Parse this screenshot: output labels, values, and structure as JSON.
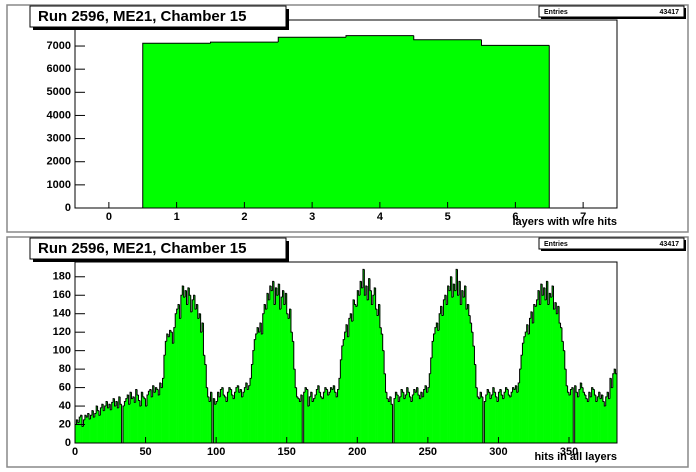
{
  "chart_data": [
    {
      "type": "histogram",
      "title": "Run 2596, ME21, Chamber 15",
      "x_label": "layers with wire hits",
      "stats_label": "Entries",
      "stats_value": 43417,
      "color": "#00ff00",
      "bins": [
        -0.5,
        0.5,
        1.5,
        2.5,
        3.5,
        4.5,
        5.5,
        6.5,
        7.5
      ],
      "values": [
        0,
        7120,
        7170,
        7380,
        7450,
        7270,
        7030,
        0
      ],
      "xlim": [
        -0.5,
        7.5
      ],
      "xticks": [
        0,
        1,
        2,
        3,
        4,
        5,
        6,
        7
      ],
      "ylim": [
        0,
        8125
      ],
      "yticks": [
        0,
        1000,
        2000,
        3000,
        4000,
        5000,
        6000,
        7000
      ]
    },
    {
      "type": "histogram",
      "title": "Run 2596, ME21, Chamber 15",
      "x_label": "hits in all layers",
      "stats_label": "Entries",
      "stats_value": 43417,
      "color": "#00ff00",
      "bins": [
        0,
        1,
        2,
        3,
        4,
        5,
        6,
        7,
        8,
        9,
        10,
        11,
        12,
        13,
        14,
        15,
        16,
        17,
        18,
        19,
        20,
        21,
        22,
        23,
        24,
        25,
        26,
        27,
        28,
        29,
        30,
        31,
        32,
        33,
        34,
        35,
        36,
        37,
        38,
        39,
        40,
        41,
        42,
        43,
        44,
        45,
        46,
        47,
        48,
        49,
        50,
        51,
        52,
        53,
        54,
        55,
        56,
        57,
        58,
        59,
        60,
        61,
        62,
        63,
        64,
        65,
        66,
        67,
        68,
        69,
        70,
        71,
        72,
        73,
        74,
        75,
        76,
        77,
        78,
        79,
        80,
        81,
        82,
        83,
        84,
        85,
        86,
        87,
        88,
        89,
        90,
        91,
        92,
        93,
        94,
        95,
        96,
        97,
        98,
        99,
        100,
        101,
        102,
        103,
        104,
        105,
        106,
        107,
        108,
        109,
        110,
        111,
        112,
        113,
        114,
        115,
        116,
        117,
        118,
        119,
        120,
        121,
        122,
        123,
        124,
        125,
        126,
        127,
        128,
        129,
        130,
        131,
        132,
        133,
        134,
        135,
        136,
        137,
        138,
        139,
        140,
        141,
        142,
        143,
        144,
        145,
        146,
        147,
        148,
        149,
        150,
        151,
        152,
        153,
        154,
        155,
        156,
        157,
        158,
        159,
        160,
        161,
        162,
        163,
        164,
        165,
        166,
        167,
        168,
        169,
        170,
        171,
        172,
        173,
        174,
        175,
        176,
        177,
        178,
        179,
        180,
        181,
        182,
        183,
        184,
        185,
        186,
        187,
        188,
        189,
        190,
        191,
        192,
        193,
        194,
        195,
        196,
        197,
        198,
        199,
        200,
        201,
        202,
        203,
        204,
        205,
        206,
        207,
        208,
        209,
        210,
        211,
        212,
        213,
        214,
        215,
        216,
        217,
        218,
        219,
        220,
        221,
        222,
        223,
        224,
        225,
        226,
        227,
        228,
        229,
        230,
        231,
        232,
        233,
        234,
        235,
        236,
        237,
        238,
        239,
        240,
        241,
        242,
        243,
        244,
        245,
        246,
        247,
        248,
        249,
        250,
        251,
        252,
        253,
        254,
        255,
        256,
        257,
        258,
        259,
        260,
        261,
        262,
        263,
        264,
        265,
        266,
        267,
        268,
        269,
        270,
        271,
        272,
        273,
        274,
        275,
        276,
        277,
        278,
        279,
        280,
        281,
        282,
        283,
        284,
        285,
        286,
        287,
        288,
        289,
        290,
        291,
        292,
        293,
        294,
        295,
        296,
        297,
        298,
        299,
        300,
        301,
        302,
        303,
        304,
        305,
        306,
        307,
        308,
        309,
        310,
        311,
        312,
        313,
        314,
        315,
        316,
        317,
        318,
        319,
        320,
        321,
        322,
        323,
        324,
        325,
        326,
        327,
        328,
        329,
        330,
        331,
        332,
        333,
        334,
        335,
        336,
        337,
        338,
        339,
        340,
        341,
        342,
        343,
        344,
        345,
        346,
        347,
        348,
        349,
        350,
        351,
        352,
        353,
        354,
        355,
        356,
        357,
        358,
        359,
        360,
        361,
        362,
        363,
        364,
        365,
        366,
        367,
        368,
        369,
        370,
        371,
        372,
        373,
        374,
        375,
        376,
        377,
        378,
        379,
        380,
        381,
        382,
        383,
        384
      ],
      "values": [
        20,
        25,
        22,
        28,
        30,
        18,
        25,
        30,
        28,
        32,
        26,
        30,
        35,
        28,
        32,
        40,
        35,
        30,
        38,
        42,
        35,
        40,
        45,
        38,
        42,
        36,
        44,
        48,
        40,
        45,
        38,
        50,
        42,
        0,
        40,
        45,
        48,
        52,
        42,
        55,
        48,
        50,
        44,
        58,
        52,
        46,
        40,
        55,
        50,
        48,
        40,
        52,
        56,
        58,
        50,
        62,
        55,
        60,
        58,
        52,
        65,
        60,
        70,
        95,
        110,
        118,
        115,
        122,
        120,
        108,
        125,
        140,
        145,
        150,
        135,
        160,
        170,
        158,
        165,
        150,
        168,
        160,
        142,
        155,
        160,
        145,
        150,
        135,
        140,
        120,
        130,
        95,
        85,
        60,
        50,
        45,
        55,
        0,
        48,
        42,
        45,
        55,
        50,
        58,
        60,
        52,
        50,
        45,
        55,
        60,
        58,
        52,
        48,
        55,
        60,
        62,
        55,
        58,
        50,
        55,
        60,
        65,
        58,
        62,
        70,
        85,
        100,
        112,
        118,
        125,
        120,
        130,
        118,
        140,
        150,
        145,
        162,
        155,
        170,
        165,
        175,
        150,
        168,
        160,
        172,
        145,
        158,
        165,
        150,
        162,
        140,
        135,
        145,
        120,
        110,
        80,
        60,
        50,
        48,
        45,
        52,
        0,
        55,
        60,
        58,
        40,
        50,
        55,
        45,
        48,
        52,
        58,
        62,
        55,
        50,
        48,
        55,
        60,
        58,
        52,
        55,
        60,
        58,
        62,
        55,
        50,
        58,
        70,
        90,
        105,
        112,
        120,
        128,
        115,
        135,
        140,
        132,
        155,
        150,
        148,
        165,
        160,
        175,
        168,
        188,
        160,
        170,
        155,
        178,
        165,
        150,
        160,
        168,
        145,
        138,
        150,
        125,
        118,
        100,
        75,
        55,
        48,
        45,
        50,
        42,
        0,
        48,
        55,
        52,
        45,
        50,
        58,
        55,
        48,
        52,
        60,
        55,
        50,
        45,
        52,
        58,
        55,
        60,
        52,
        48,
        55,
        50,
        58,
        62,
        55,
        60,
        75,
        92,
        110,
        118,
        125,
        130,
        122,
        140,
        148,
        138,
        155,
        160,
        150,
        170,
        165,
        180,
        158,
        172,
        165,
        188,
        160,
        175,
        150,
        165,
        158,
        170,
        145,
        150,
        138,
        130,
        120,
        105,
        85,
        60,
        50,
        48,
        55,
        50,
        0,
        45,
        52,
        58,
        55,
        48,
        52,
        60,
        55,
        50,
        45,
        55,
        58,
        52,
        48,
        55,
        60,
        58,
        52,
        50,
        55,
        60,
        58,
        62,
        55,
        65,
        80,
        95,
        108,
        115,
        120,
        128,
        118,
        135,
        142,
        130,
        150,
        148,
        155,
        165,
        150,
        172,
        160,
        168,
        155,
        175,
        150,
        162,
        158,
        170,
        145,
        152,
        140,
        148,
        130,
        125,
        110,
        100,
        80,
        62,
        55,
        52,
        58,
        60,
        0,
        62,
        55,
        50,
        58,
        65,
        60,
        55,
        52,
        48,
        45,
        55,
        50,
        60,
        58,
        52,
        45,
        50,
        55,
        48,
        52,
        45,
        40,
        50,
        55,
        48,
        70,
        60,
        75,
        80,
        75
      ],
      "xlim": [
        0,
        384
      ],
      "xticks": [
        0,
        50,
        100,
        150,
        200,
        250,
        300,
        350
      ],
      "ylim": [
        0,
        196
      ],
      "yticks": [
        0,
        20,
        40,
        60,
        80,
        100,
        120,
        140,
        160,
        180
      ]
    }
  ]
}
